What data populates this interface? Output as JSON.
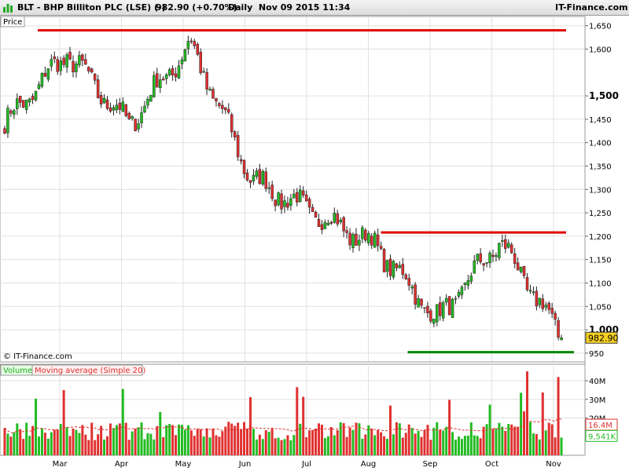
{
  "header": {
    "symbol_title": "BLT - BHP Billiton PLC (LSE) (-)",
    "last_price_change": "982.90 (+0.70%)",
    "period_date": "Daily  Nov 09 2015 11:34",
    "brand": "IT-Finance.com"
  },
  "price_panel": {
    "label": "Price",
    "copyright": "© IT-Finance.com",
    "y_ticks": [
      {
        "value": 1650,
        "label": "1,650"
      },
      {
        "value": 1600,
        "label": "1,600"
      },
      {
        "value": 1500,
        "label": "1,500"
      },
      {
        "value": 1450,
        "label": "1,450"
      },
      {
        "value": 1400,
        "label": "1,400"
      },
      {
        "value": 1350,
        "label": "1,350"
      },
      {
        "value": 1300,
        "label": "1,300"
      },
      {
        "value": 1250,
        "label": "1,250"
      },
      {
        "value": 1200,
        "label": "1,200"
      },
      {
        "value": 1150,
        "label": "1,150"
      },
      {
        "value": 1100,
        "label": "1,100"
      },
      {
        "value": 1050,
        "label": "1,050"
      },
      {
        "value": 1000,
        "label": "1,000"
      },
      {
        "value": 950,
        "label": "950"
      }
    ],
    "bold_ticks": [
      1500,
      1000
    ],
    "last_price_label": "982.90",
    "last_price_value": 982.9
  },
  "volume_panel": {
    "legend_volume": "Volume",
    "legend_ma": "Moving average (Simple 20)",
    "y_ticks": [
      {
        "value": 40,
        "label": "40M"
      },
      {
        "value": 30,
        "label": "30M"
      },
      {
        "value": 20,
        "label": "20M"
      }
    ],
    "ma_label": "16.4M",
    "ma_value": 16.4,
    "last_volume_label": "9,541K",
    "last_volume_value": 9.541
  },
  "x_axis": {
    "months": [
      "Mar",
      "Apr",
      "May",
      "Jun",
      "Jul",
      "Aug",
      "Sep",
      "Oct",
      "Nov"
    ]
  },
  "colors": {
    "up": "#22bb22",
    "down": "#e03030",
    "resistance": "#e00000",
    "support": "#008800",
    "ma": "#e03030",
    "grid": "#e0e0e0",
    "last_price_bg": "#f5d020"
  },
  "chart_data": {
    "type": "candlestick",
    "price_range": [
      933,
      1668
    ],
    "volume_range_millions": [
      0,
      48
    ],
    "resistance_levels": [
      {
        "value": 1640,
        "from": "Feb",
        "to": "Nov"
      },
      {
        "value": 1208,
        "from": "Aug",
        "to": "Nov"
      }
    ],
    "support_levels": [
      {
        "value": 952,
        "from": "Aug",
        "to": "Nov"
      }
    ],
    "key_points": [
      {
        "period": "Feb",
        "close": 1440
      },
      {
        "period": "Mar",
        "close": 1590
      },
      {
        "period": "Apr",
        "close": 1440
      },
      {
        "period": "May",
        "close": 1610
      },
      {
        "period": "Jun",
        "close": 1320
      },
      {
        "period": "Jul",
        "close": 1250
      },
      {
        "period": "Aug",
        "close": 1180
      },
      {
        "period": "Sep",
        "close": 1020
      },
      {
        "period": "Oct",
        "close": 1190
      },
      {
        "period": "Nov",
        "close": 982.9
      }
    ]
  }
}
